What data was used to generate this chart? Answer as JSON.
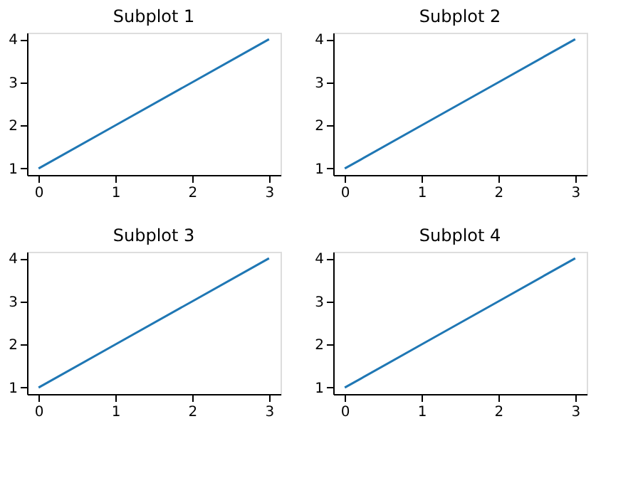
{
  "chart_data": [
    {
      "type": "line",
      "title": "Subplot 1",
      "x": [
        0,
        1,
        2,
        3
      ],
      "series": [
        {
          "color": "#1f77b4",
          "values": [
            1,
            2,
            3,
            4
          ]
        }
      ],
      "xlim": [
        -0.15,
        3.15
      ],
      "ylim": [
        0.85,
        4.15
      ],
      "xticks": [
        0,
        1,
        2,
        3
      ],
      "yticks": [
        1,
        2,
        3,
        4
      ],
      "grid": false,
      "legend": false
    },
    {
      "type": "line",
      "title": "Subplot 2",
      "x": [
        0,
        1,
        2,
        3
      ],
      "series": [
        {
          "color": "#1f77b4",
          "values": [
            1,
            2,
            3,
            4
          ]
        }
      ],
      "xlim": [
        -0.15,
        3.15
      ],
      "ylim": [
        0.85,
        4.15
      ],
      "xticks": [
        0,
        1,
        2,
        3
      ],
      "yticks": [
        1,
        2,
        3,
        4
      ],
      "grid": false,
      "legend": false
    },
    {
      "type": "line",
      "title": "Subplot 3",
      "x": [
        0,
        1,
        2,
        3
      ],
      "series": [
        {
          "color": "#1f77b4",
          "values": [
            1,
            2,
            3,
            4
          ]
        }
      ],
      "xlim": [
        -0.15,
        3.15
      ],
      "ylim": [
        0.85,
        4.15
      ],
      "xticks": [
        0,
        1,
        2,
        3
      ],
      "yticks": [
        1,
        2,
        3,
        4
      ],
      "grid": false,
      "legend": false
    },
    {
      "type": "line",
      "title": "Subplot 4",
      "x": [
        0,
        1,
        2,
        3
      ],
      "series": [
        {
          "color": "#1f77b4",
          "values": [
            1,
            2,
            3,
            4
          ]
        }
      ],
      "xlim": [
        -0.15,
        3.15
      ],
      "ylim": [
        0.85,
        4.15
      ],
      "xticks": [
        0,
        1,
        2,
        3
      ],
      "yticks": [
        1,
        2,
        3,
        4
      ],
      "grid": false,
      "legend": false
    }
  ]
}
